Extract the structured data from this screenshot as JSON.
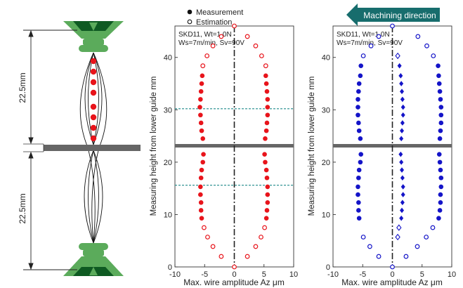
{
  "dimension_label_upper": "22.5mm",
  "dimension_label_lower": "22.5mm",
  "machining_direction_label": "Machining direction",
  "colors": {
    "red": "#e8141b",
    "blue": "#1414c8",
    "teal_dashed": "#1f8a8a",
    "guide_green": "#5bab5b",
    "dark_green": "#0e5a22",
    "arrow_teal": "#176d6d",
    "workpiece_gray": "#666666"
  },
  "chart_data": [
    {
      "type": "scatter",
      "legend": {
        "entries": [
          "Measurement",
          "Estimation"
        ],
        "placement": "top-center"
      },
      "annotation": [
        "SKD11, Wt=1.0N",
        "Ws=7m/min, Sv=90V"
      ],
      "xlabel": "Max. wire amplitude   Az μm",
      "ylabel": "Measuring height from lower guide   mm",
      "xlim": [
        -10,
        10
      ],
      "ylim": [
        0,
        46
      ],
      "xticks": [
        "-10",
        "-5",
        "0",
        "5",
        "10"
      ],
      "yticks": [
        "0",
        "10",
        "20",
        "30",
        "40"
      ],
      "workpiece_y": 23,
      "dashed_lines_y": [
        15.6,
        30.2
      ],
      "series": [
        {
          "name": "Measurement",
          "marker": "filled-circle",
          "points": [
            [
              -5.5,
              9.3
            ],
            [
              -5.6,
              10.8
            ],
            [
              -5.6,
              12.3
            ],
            [
              -5.7,
              13.8
            ],
            [
              -5.7,
              15.3
            ],
            [
              -5.6,
              17
            ],
            [
              -5.5,
              18.5
            ],
            [
              -5.3,
              20
            ],
            [
              -5.2,
              21.5
            ],
            [
              -5.3,
              24.5
            ],
            [
              -5.5,
              26
            ],
            [
              -5.6,
              27.5
            ],
            [
              -5.7,
              29
            ],
            [
              -5.8,
              30.5
            ],
            [
              -5.7,
              32
            ],
            [
              -5.6,
              33.5
            ],
            [
              -5.5,
              35
            ],
            [
              -5.4,
              36.5
            ],
            [
              5.4,
              9.3
            ],
            [
              5.5,
              10.8
            ],
            [
              5.6,
              12.3
            ],
            [
              5.6,
              13.8
            ],
            [
              5.6,
              15.3
            ],
            [
              5.5,
              17
            ],
            [
              5.4,
              18.5
            ],
            [
              5.2,
              20
            ],
            [
              5.1,
              21.5
            ],
            [
              5.2,
              24.5
            ],
            [
              5.4,
              26
            ],
            [
              5.5,
              27.5
            ],
            [
              5.6,
              29
            ],
            [
              5.6,
              30.5
            ],
            [
              5.6,
              32
            ],
            [
              5.5,
              33.5
            ],
            [
              5.4,
              35
            ],
            [
              5.3,
              36.5
            ]
          ]
        },
        {
          "name": "Estimation",
          "marker": "open-circle",
          "points": [
            [
              0,
              0
            ],
            [
              -2.2,
              2
            ],
            [
              -3.6,
              3.9
            ],
            [
              -4.5,
              5.7
            ],
            [
              -5.1,
              7.5
            ],
            [
              2.2,
              2
            ],
            [
              3.6,
              3.9
            ],
            [
              4.5,
              5.7
            ],
            [
              5.1,
              7.5
            ],
            [
              -5.3,
              38.4
            ],
            [
              -4.6,
              40.3
            ],
            [
              -3.6,
              42.2
            ],
            [
              -2.2,
              44
            ],
            [
              0,
              46
            ],
            [
              5.3,
              38.4
            ],
            [
              4.6,
              40.3
            ],
            [
              3.6,
              42.2
            ],
            [
              2.2,
              44
            ]
          ]
        }
      ]
    },
    {
      "type": "scatter",
      "title_banner": "Machining direction",
      "annotation": [
        "SKD11, Wt=1.0N",
        "Ws=7m/min, Sv=90V"
      ],
      "xlabel": "Max. wire amplitude   Az μm",
      "ylabel": "Measuring height from lower guide   mm",
      "xlim": [
        -10,
        10
      ],
      "ylim": [
        0,
        46
      ],
      "xticks": [
        "-10",
        "-5",
        "0",
        "5",
        "10"
      ],
      "yticks": [
        "0",
        "10",
        "20",
        "30",
        "40"
      ],
      "workpiece_y": 23,
      "series": [
        {
          "marker": "filled-circle",
          "points": [
            [
              -5.6,
              9.3
            ],
            [
              -5.7,
              10.8
            ],
            [
              -5.7,
              12.3
            ],
            [
              -5.8,
              13.8
            ],
            [
              -5.8,
              15.3
            ],
            [
              -5.7,
              17
            ],
            [
              -5.6,
              18.5
            ],
            [
              -5.4,
              20
            ],
            [
              -5.3,
              21.5
            ],
            [
              -5.4,
              24.5
            ],
            [
              -5.6,
              26
            ],
            [
              -5.7,
              27.5
            ],
            [
              -5.8,
              29
            ],
            [
              -5.8,
              30.5
            ],
            [
              -5.8,
              32
            ],
            [
              -5.7,
              33.5
            ],
            [
              -5.6,
              35
            ],
            [
              -5.4,
              36.5
            ],
            [
              -5.3,
              38.4
            ],
            [
              7.8,
              9.3
            ],
            [
              8,
              10.8
            ],
            [
              8.1,
              12.3
            ],
            [
              8.1,
              13.8
            ],
            [
              8.2,
              15.3
            ],
            [
              8.2,
              17
            ],
            [
              8.1,
              18.5
            ],
            [
              8,
              20
            ],
            [
              7.9,
              21.5
            ],
            [
              8,
              24.5
            ],
            [
              8.1,
              26
            ],
            [
              8.2,
              27.5
            ],
            [
              8.2,
              29
            ],
            [
              8.2,
              30.5
            ],
            [
              8.1,
              32
            ],
            [
              8,
              33.5
            ],
            [
              7.9,
              35
            ],
            [
              7.8,
              36.5
            ],
            [
              7.7,
              38.4
            ]
          ]
        },
        {
          "marker": "filled-diamond",
          "points": [
            [
              1.5,
              9.3
            ],
            [
              1.6,
              10.8
            ],
            [
              1.7,
              12.3
            ],
            [
              1.8,
              13.8
            ],
            [
              1.8,
              15.3
            ],
            [
              1.7,
              17
            ],
            [
              1.6,
              18.5
            ],
            [
              1.5,
              20
            ],
            [
              1.4,
              21.5
            ],
            [
              1.5,
              24.5
            ],
            [
              1.6,
              26
            ],
            [
              1.7,
              27.5
            ],
            [
              1.8,
              29
            ],
            [
              1.8,
              30.5
            ],
            [
              1.7,
              32
            ],
            [
              1.6,
              33.5
            ],
            [
              1.5,
              35
            ],
            [
              1.4,
              36.5
            ],
            [
              1.2,
              38.4
            ]
          ]
        },
        {
          "marker": "open-diamond",
          "points": [
            [
              1.1,
              7.5
            ],
            [
              0.9,
              5.7
            ],
            [
              0.9,
              40.3
            ]
          ]
        },
        {
          "marker": "open-circle",
          "points": [
            [
              0,
              0
            ],
            [
              -2.3,
              2
            ],
            [
              -3.8,
              3.9
            ],
            [
              -4.9,
              5.7
            ],
            [
              2.3,
              2
            ],
            [
              4.2,
              3.9
            ],
            [
              5.7,
              5.7
            ],
            [
              6.8,
              7.5
            ],
            [
              -4.9,
              40.3
            ],
            [
              -3.6,
              42.2
            ],
            [
              -2.3,
              44
            ],
            [
              0,
              46
            ],
            [
              6.9,
              40.3
            ],
            [
              5.8,
              42.2
            ],
            [
              4.3,
              44
            ]
          ]
        }
      ]
    }
  ]
}
